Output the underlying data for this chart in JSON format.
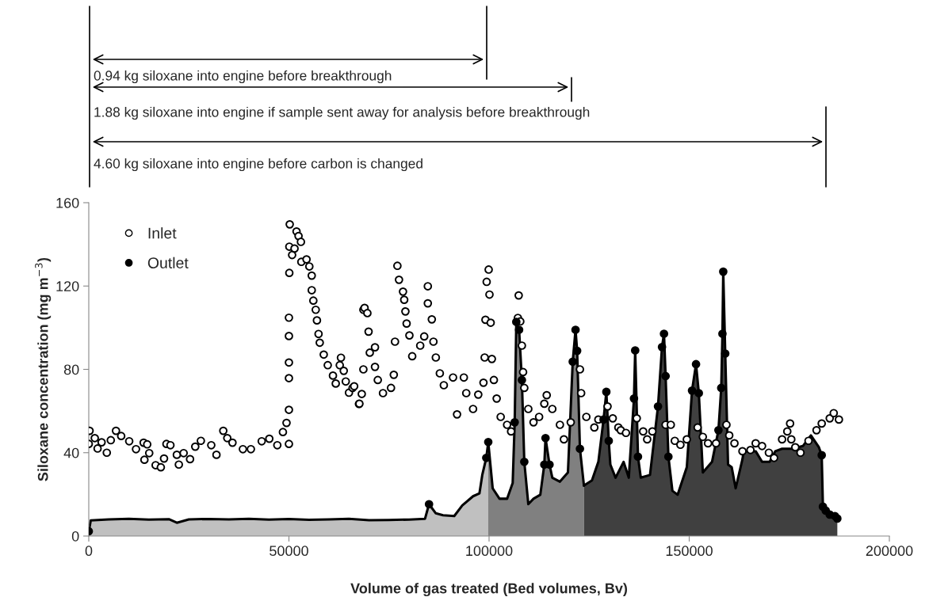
{
  "chart_data": {
    "type": "scatter",
    "xlabel": "Volume of gas treated (Bed volumes, Bv)",
    "ylabel": "Siloxane concentration (mg m$^{−3}$)",
    "xlim": [
      0,
      200000
    ],
    "ylim": [
      0,
      160
    ],
    "xticks": [
      0,
      50000,
      100000,
      150000,
      200000
    ],
    "yticks": [
      0,
      40,
      80,
      120,
      160
    ],
    "grid": false,
    "legend": "top left",
    "annotations": [
      "0.94 kg siloxane into engine before breakthrough",
      "1.88 kg siloxane into engine if sample sent away for analysis before breakthrough",
      "4.60 kg siloxane into engine before carbon is changed"
    ],
    "series": [
      {
        "type": "area",
        "color": "#c0c0c0",
        "x": [
          0,
          500,
          5000,
          10000,
          15000,
          20000,
          22000,
          25000,
          30000,
          35000,
          40000,
          45000,
          50000,
          55000,
          60000,
          65000,
          70000,
          75000,
          80000,
          84000,
          85000,
          86700,
          88500,
          91300,
          93300,
          96000,
          97600,
          98300,
          99300,
          99800
        ],
        "values": [
          2.3,
          7.5,
          8.0,
          8.3,
          7.9,
          8.1,
          6.4,
          8.0,
          8.2,
          8.0,
          8.3,
          7.9,
          8.2,
          7.8,
          8.0,
          8.3,
          7.6,
          7.7,
          7.9,
          8.3,
          15.3,
          10.9,
          10.0,
          9.6,
          14.7,
          19.1,
          20.5,
          29.3,
          37.5,
          45.1
        ]
      },
      {
        "type": "area",
        "color": "#808080",
        "x": [
          99800,
          100900,
          102600,
          104500,
          105900,
          106400,
          106800,
          107500,
          108200,
          108800,
          109800,
          111100,
          112800,
          113800,
          114100,
          115100,
          115800,
          117700,
          119700,
          120900,
          121600,
          122000,
          122700,
          123700
        ],
        "values": [
          45.1,
          22.9,
          17.9,
          17.9,
          25.5,
          54.6,
          102.8,
          99.0,
          74.9,
          35.6,
          15.3,
          17.9,
          19.8,
          34.3,
          47.0,
          34.3,
          28.0,
          26.1,
          30.5,
          83.7,
          99.0,
          88.9,
          41.9,
          24.2
        ]
      },
      {
        "type": "area",
        "color": "#404040",
        "x": [
          123700,
          125700,
          127300,
          128600,
          129300,
          129900,
          130300,
          131600,
          133600,
          134900,
          136200,
          136500,
          137200,
          137900,
          140200,
          142200,
          143200,
          143700,
          144100,
          144800,
          145800,
          147100,
          149400,
          150700,
          151700,
          152400,
          153400,
          155700,
          157300,
          158000,
          158300,
          158500,
          159000,
          159700,
          160600,
          161600,
          163300,
          163600,
          166600,
          168200,
          170100,
          171500,
          173200,
          175800,
          178400,
          180400,
          182400,
          183100,
          183400,
          184100,
          185100,
          186400,
          187000
        ],
        "values": [
          24.2,
          26.7,
          35.6,
          55.9,
          69.2,
          45.7,
          34.3,
          28.0,
          35.6,
          28.0,
          66.0,
          89.1,
          38.1,
          28.0,
          29.3,
          62.2,
          90.7,
          97.1,
          76.8,
          38.1,
          21.7,
          19.8,
          33.1,
          69.8,
          82.5,
          68.6,
          30.5,
          35.6,
          50.8,
          71.1,
          97.1,
          126.9,
          87.6,
          34.3,
          33.1,
          22.9,
          36.9,
          40.7,
          40.7,
          35.6,
          35.6,
          40.7,
          41.9,
          41.9,
          43.2,
          48.3,
          42.6,
          38.8,
          14.1,
          12.2,
          10.3,
          9.6,
          8.4
        ]
      },
      {
        "name": "Inlet",
        "color": "#ffffff",
        "marker": "circle",
        "x": [
          0,
          200,
          1500,
          2200,
          3200,
          4500,
          5500,
          6800,
          8100,
          10100,
          11800,
          13700,
          14600,
          13900,
          15100,
          16700,
          18000,
          18800,
          19400,
          20400,
          22000,
          22500,
          23700,
          25300,
          26600,
          28000,
          30600,
          31900,
          33600,
          34600,
          35900,
          38500,
          40500,
          43200,
          45100,
          47100,
          48500,
          49400,
          50000,
          50000,
          50000,
          50000,
          50000,
          50000,
          50100,
          50100,
          50200,
          50800,
          51400,
          51900,
          52400,
          53000,
          53100,
          54400,
          55100,
          55700,
          55700,
          56100,
          56700,
          57000,
          57400,
          57700,
          58700,
          59700,
          61000,
          61700,
          62700,
          63000,
          63700,
          64200,
          65000,
          65900,
          66300,
          67500,
          67600,
          68200,
          68600,
          68600,
          68900,
          69600,
          69900,
          70200,
          71500,
          71500,
          72200,
          73500,
          75500,
          76200,
          76500,
          77100,
          77500,
          78500,
          78800,
          79100,
          79400,
          80100,
          80800,
          82800,
          83800,
          84700,
          84700,
          85700,
          86100,
          86700,
          87700,
          88700,
          91000,
          92000,
          93700,
          94300,
          96000,
          97300,
          98600,
          98900,
          99100,
          99400,
          99900,
          100100,
          100400,
          100700,
          101200,
          101900,
          102900,
          104500,
          105500,
          107200,
          107400,
          107800,
          108200,
          108500,
          108800,
          109800,
          111100,
          112500,
          113800,
          114400,
          115800,
          117700,
          118700,
          120400,
          122700,
          123000,
          124300,
          126300,
          127300,
          129600,
          130900,
          132300,
          132900,
          134200,
          136900,
          138500,
          139500,
          140800,
          144100,
          145400,
          146400,
          147800,
          149400,
          152100,
          153400,
          154700,
          156700,
          159300,
          160000,
          161300,
          163300,
          165300,
          166600,
          168200,
          169900,
          171200,
          173200,
          174500,
          175200,
          175500,
          176500,
          177800,
          179800,
          181800,
          183100,
          185100,
          186100,
          187400
        ],
        "values": [
          44.2,
          50.5,
          47,
          42,
          45,
          40,
          46,
          50.5,
          48,
          45.5,
          41.7,
          44.8,
          44,
          36.6,
          39.8,
          34,
          33,
          37.2,
          44.2,
          43.6,
          39,
          34.3,
          39.8,
          36.9,
          42.9,
          45.7,
          43.6,
          39,
          50.5,
          47,
          44.8,
          41.7,
          41.7,
          45.5,
          46.7,
          43.6,
          49.9,
          54.3,
          44.2,
          60.6,
          75.8,
          83.3,
          96,
          104.8,
          126.3,
          138.9,
          149.6,
          134.9,
          138,
          146.2,
          144,
          141.2,
          131.6,
          132.8,
          129.4,
          125,
          118,
          113,
          108.6,
          103.5,
          97,
          92.8,
          87.1,
          82,
          77,
          73.2,
          82,
          85.6,
          79.3,
          74.2,
          68.8,
          71.1,
          71.9,
          63.4,
          63.5,
          68.2,
          108.6,
          80,
          109.5,
          107,
          98.1,
          88,
          90.6,
          81.2,
          74.9,
          68.6,
          71.1,
          77.4,
          93.3,
          129.7,
          123,
          117.3,
          113.4,
          107.8,
          102,
          96.3,
          86.3,
          91.4,
          95.8,
          119.9,
          111.7,
          104,
          93.3,
          85.7,
          78.1,
          72.4,
          76.1,
          58.4,
          76.1,
          68.6,
          61,
          67.9,
          73.6,
          85.7,
          103.8,
          122,
          127.9,
          115.9,
          102.4,
          85,
          74.9,
          66,
          57.2,
          53.4,
          50.2,
          104.7,
          115.5,
          103,
          91.4,
          78.7,
          71.1,
          61,
          54.6,
          57.2,
          63.5,
          67.6,
          61,
          53.4,
          46.4,
          54.6,
          80,
          68.6,
          57.2,
          52.1,
          55.9,
          62.2,
          56.5,
          52.1,
          50.8,
          49.5,
          56.5,
          50.2,
          46.4,
          50.2,
          53.4,
          53.4,
          45.7,
          43.8,
          46.4,
          52.1,
          47.6,
          44.5,
          44.5,
          53.4,
          48.3,
          44.5,
          40.7,
          41.3,
          44.5,
          43.2,
          40,
          37.5,
          46.4,
          50.2,
          54,
          46.4,
          42.6,
          40,
          45.7,
          50.8,
          54,
          56.5,
          59,
          55.9
        ]
      },
      {
        "name": "Outlet",
        "color": "#000000",
        "marker": "circle",
        "x": [
          0,
          85000,
          99300,
          99800,
          106400,
          106800,
          107500,
          108200,
          108800,
          113800,
          114100,
          115100,
          120900,
          121600,
          122000,
          122700,
          128600,
          129300,
          129900,
          135900,
          136200,
          136500,
          137200,
          142200,
          143200,
          143700,
          144100,
          144800,
          150700,
          151700,
          152400,
          157300,
          158000,
          158300,
          158500,
          159000,
          183100,
          183400,
          184100,
          185100,
          186400,
          187000
        ],
        "values": [
          2.3,
          15.3,
          37.5,
          45.1,
          54.6,
          102.8,
          99.0,
          74.9,
          35.6,
          34.3,
          47.0,
          34.3,
          83.7,
          99.0,
          88.9,
          41.9,
          55.9,
          69.2,
          45.7,
          null,
          66.0,
          89.1,
          38.1,
          62.2,
          90.7,
          97.1,
          76.8,
          38.1,
          69.8,
          82.5,
          68.6,
          50.8,
          71.1,
          97.1,
          126.9,
          87.6,
          38.8,
          14.1,
          12.2,
          10.3,
          9.6,
          8.4
        ]
      }
    ]
  }
}
